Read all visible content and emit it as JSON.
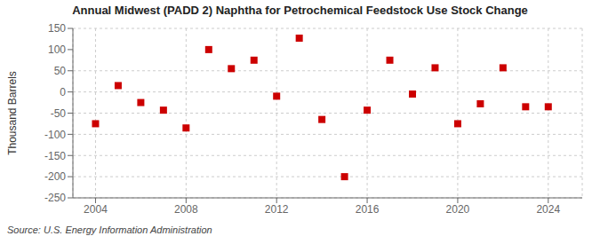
{
  "chart_data": {
    "type": "scatter",
    "title": "Annual Midwest (PADD 2) Naphtha for Petrochemical Feedstock Use Stock Change",
    "ylabel": "Thousand Barrels",
    "annotations": [
      "Source: U.S. Energy Information Administration"
    ],
    "x": [
      2004,
      2005,
      2006,
      2007,
      2008,
      2009,
      2010,
      2011,
      2012,
      2013,
      2014,
      2015,
      2016,
      2017,
      2018,
      2019,
      2020,
      2021,
      2022,
      2023,
      2024
    ],
    "values": [
      -75,
      15,
      -25,
      -43,
      -85,
      100,
      55,
      75,
      -10,
      127,
      -65,
      -200,
      -43,
      75,
      -5,
      57,
      -75,
      -28,
      57,
      -35,
      -35
    ],
    "color": "#CC0000",
    "marker": "square",
    "xlim": [
      2003,
      2025.5
    ],
    "ylim": [
      -250,
      150
    ],
    "xticks": [
      2004,
      2008,
      2012,
      2016,
      2020,
      2024
    ],
    "yticks": [
      -250,
      -200,
      -150,
      -100,
      -50,
      0,
      50,
      100,
      150
    ],
    "grid": true
  }
}
